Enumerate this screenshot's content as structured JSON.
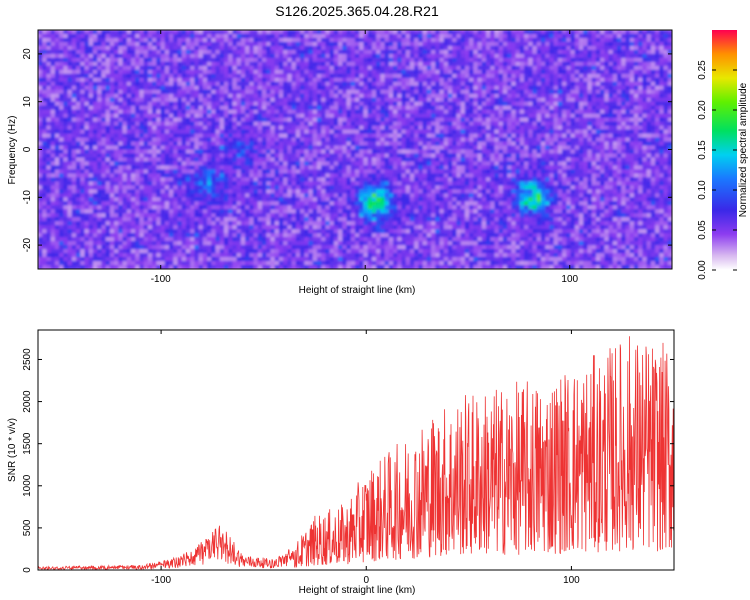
{
  "title": "S126.2025.365.04.28.R21",
  "chart_data": [
    {
      "type": "heatmap",
      "xlabel": "Height of straight line (km)",
      "ylabel": "Frequency (Hz)",
      "xlim": [
        -160,
        150
      ],
      "ylim": [
        -25,
        25
      ],
      "xticks": [
        -100,
        0,
        100
      ],
      "yticks": [
        -20,
        -10,
        0,
        10,
        20
      ],
      "colorbar": {
        "label": "Normalized spectral amplitude",
        "range": [
          0,
          0.3
        ],
        "ticks": [
          0.0,
          0.05,
          0.1,
          0.15,
          0.2,
          0.25
        ],
        "tick_labels": [
          "0.00",
          "0.05",
          "0.10",
          "0.15",
          "0.20",
          "0.25"
        ]
      },
      "hotspots": [
        {
          "x": 5,
          "y": -11,
          "value": 0.22
        },
        {
          "x": 82,
          "y": -10,
          "value": 0.2
        },
        {
          "x": -76,
          "y": -7,
          "value": 0.12
        },
        {
          "x": -60,
          "y": 0,
          "value": 0.1
        }
      ]
    },
    {
      "type": "line",
      "xlabel": "Height of straight line (km)",
      "ylabel": "SNR (10 * v/v)",
      "xlim": [
        -160,
        150
      ],
      "ylim": [
        0,
        2850
      ],
      "xticks": [
        -100,
        0,
        100
      ],
      "yticks": [
        0,
        500,
        1000,
        1500,
        2000,
        2500
      ],
      "series": [
        {
          "color": "#ee3333",
          "envelope": [
            {
              "x": -160,
              "y": 40
            },
            {
              "x": -110,
              "y": 60
            },
            {
              "x": -95,
              "y": 130
            },
            {
              "x": -85,
              "y": 250
            },
            {
              "x": -70,
              "y": 560
            },
            {
              "x": -60,
              "y": 180
            },
            {
              "x": -45,
              "y": 130
            },
            {
              "x": -35,
              "y": 300
            },
            {
              "x": -25,
              "y": 650
            },
            {
              "x": -10,
              "y": 800
            },
            {
              "x": 0,
              "y": 1200
            },
            {
              "x": 15,
              "y": 1500
            },
            {
              "x": 30,
              "y": 1850
            },
            {
              "x": 45,
              "y": 2100
            },
            {
              "x": 65,
              "y": 2200
            },
            {
              "x": 85,
              "y": 2300
            },
            {
              "x": 100,
              "y": 2450
            },
            {
              "x": 115,
              "y": 2600
            },
            {
              "x": 128,
              "y": 2850
            },
            {
              "x": 150,
              "y": 2650
            }
          ]
        }
      ]
    }
  ]
}
